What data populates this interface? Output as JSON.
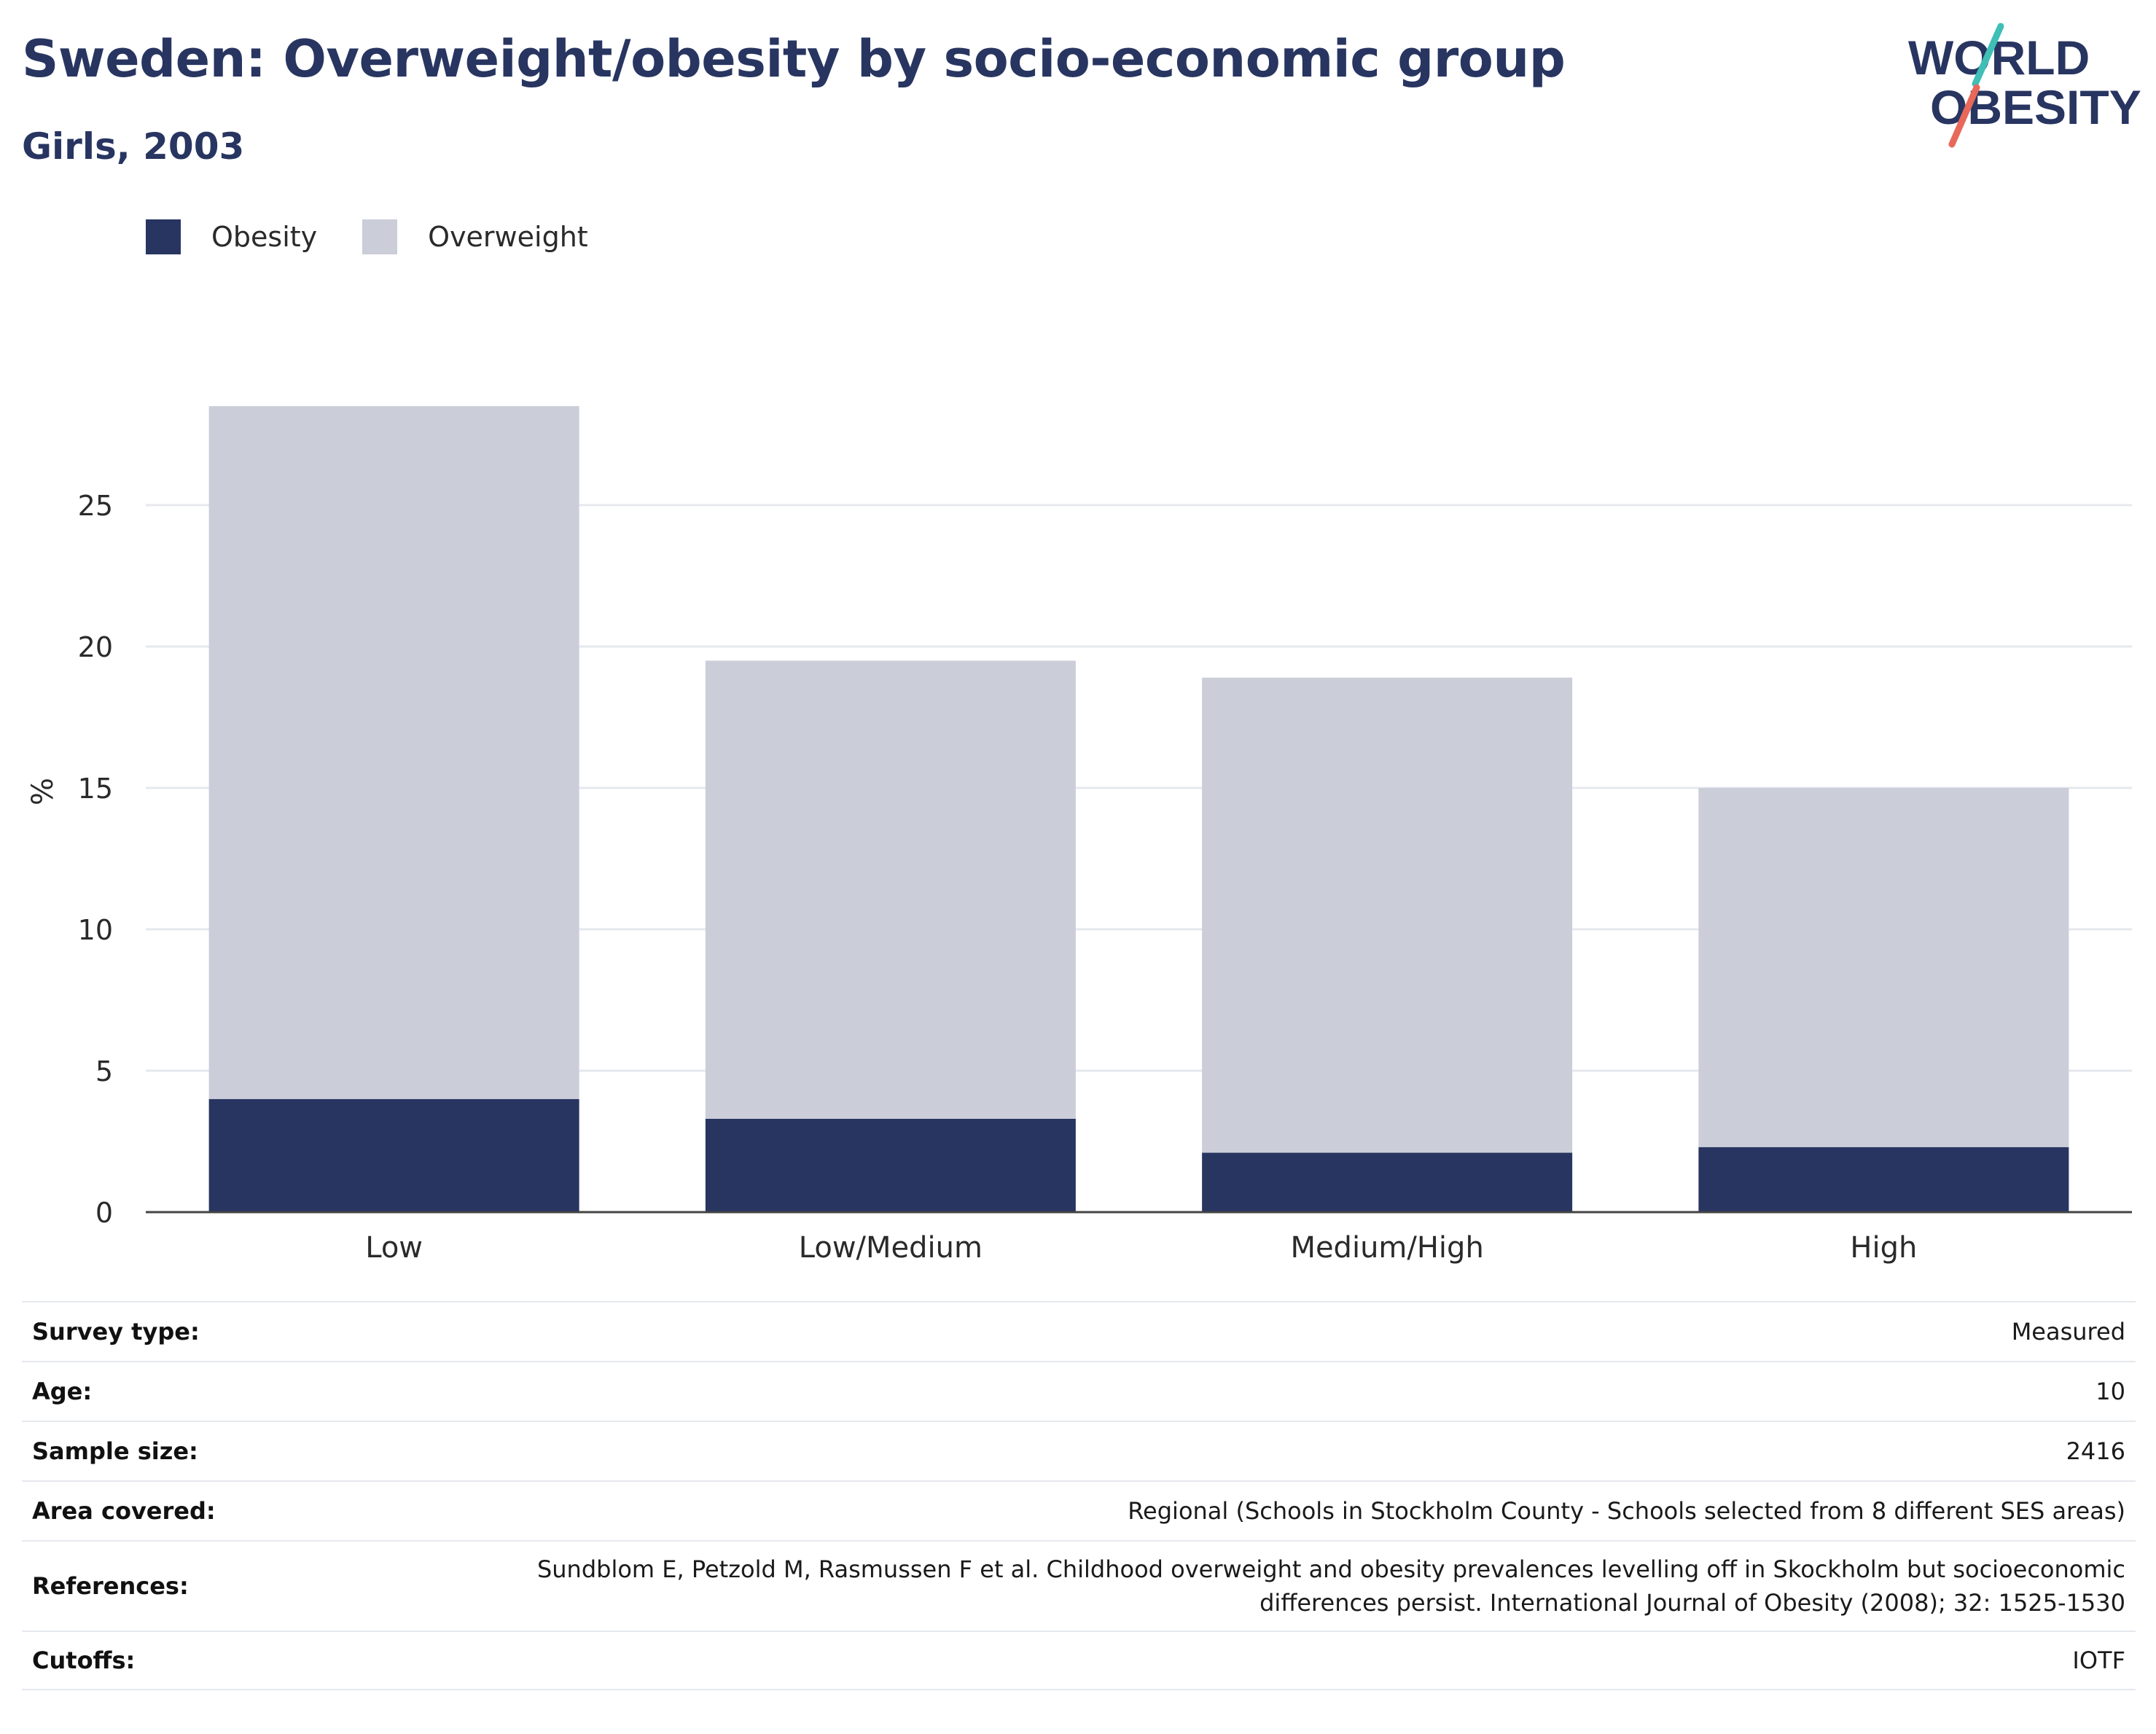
{
  "header": {
    "title": "Sweden: Overweight/obesity by socio-economic group",
    "subtitle": "Girls, 2003"
  },
  "logo": {
    "line1": "WORLD",
    "line2": "OBESITY"
  },
  "colors": {
    "obesity": "#283561",
    "overweight": "#cbcdd9",
    "title": "#283561",
    "gridline": "#e6e8ef",
    "logo_teal": "#3fbfb5",
    "logo_coral": "#e8685a"
  },
  "chart_data": {
    "type": "bar",
    "stacked": true,
    "categories": [
      "Low",
      "Low/Medium",
      "Medium/High",
      "High"
    ],
    "series": [
      {
        "name": "Obesity",
        "values": [
          4.0,
          3.3,
          2.1,
          2.3
        ]
      },
      {
        "name": "Overweight",
        "values": [
          24.5,
          16.2,
          16.8,
          12.7
        ]
      }
    ],
    "ylabel": "%",
    "xlabel": "",
    "ylim": [
      0,
      30
    ],
    "yticks": [
      0,
      5,
      10,
      15,
      20,
      25
    ],
    "grid": true,
    "legend_position": "top-left"
  },
  "info_table": [
    {
      "label": "Survey type:",
      "value": "Measured"
    },
    {
      "label": "Age:",
      "value": "10"
    },
    {
      "label": "Sample size:",
      "value": "2416"
    },
    {
      "label": "Area covered:",
      "value": "Regional (Schools in Stockholm County - Schools selected from 8 different SES areas)"
    },
    {
      "label": "References:",
      "value": "Sundblom E, Petzold M, Rasmussen F et al. Childhood overweight and obesity prevalences levelling off in Skockholm but socioeconomic differences persist. International Journal of Obesity (2008); 32: 1525-1530"
    },
    {
      "label": "Cutoffs:",
      "value": "IOTF"
    }
  ]
}
